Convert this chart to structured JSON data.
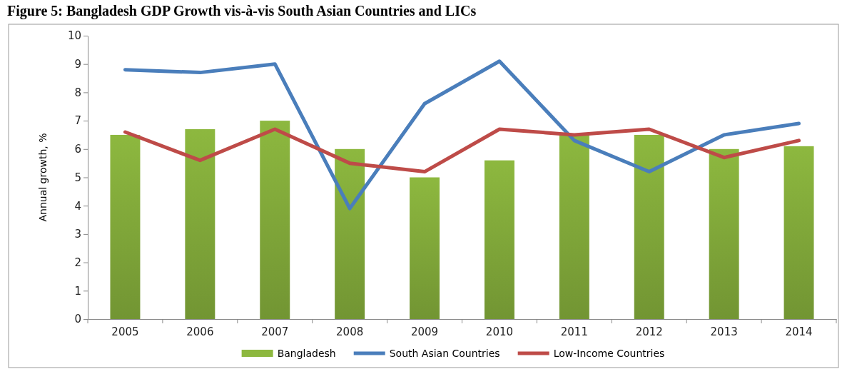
{
  "chart_data": {
    "type": "bar",
    "title": "Figure 5: Bangladesh GDP Growth vis-à-vis South Asian Countries and LICs",
    "ylabel": "Annual growth, %",
    "categories": [
      "2005",
      "2006",
      "2007",
      "2008",
      "2009",
      "2010",
      "2011",
      "2012",
      "2013",
      "2014"
    ],
    "series": [
      {
        "name": "Bangladesh",
        "color": "#8db83f",
        "values": [
          6.5,
          6.7,
          7.0,
          6.0,
          5.0,
          5.6,
          6.5,
          6.5,
          6.0,
          6.1
        ]
      },
      {
        "name": "South Asian Countries",
        "type": "line",
        "color": "#4a7ebb",
        "values": [
          8.8,
          8.7,
          9.0,
          3.9,
          7.6,
          9.1,
          6.3,
          5.2,
          6.5,
          6.9
        ]
      },
      {
        "name": "Low-Income Countries",
        "type": "line",
        "color": "#be4b48",
        "values": [
          6.6,
          5.6,
          6.7,
          5.5,
          5.2,
          6.7,
          6.5,
          6.7,
          5.7,
          6.3
        ]
      }
    ],
    "ylim": [
      0,
      10
    ],
    "yticks": [
      0,
      1,
      2,
      3,
      4,
      5,
      6,
      7,
      8,
      9,
      10
    ],
    "grid": false,
    "legend": "bottom",
    "marker": "none",
    "line_style": "solid"
  }
}
